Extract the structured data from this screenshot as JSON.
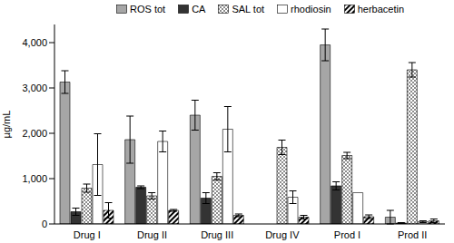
{
  "chart_data": {
    "type": "bar",
    "y_label": "µg/mL",
    "categories": [
      "Drug I",
      "Drug II",
      "Drug III",
      "Drug IV",
      "Prod I",
      "Prod II"
    ],
    "series": [
      {
        "name": "ROS tot",
        "color": "#a6a6a6",
        "values": [
          3130,
          1860,
          2400,
          0,
          3950,
          150
        ],
        "errors": [
          250,
          520,
          330,
          0,
          350,
          150
        ]
      },
      {
        "name": "CA",
        "color": "#333333",
        "values": [
          270,
          810,
          570,
          0,
          840,
          20
        ],
        "errors": [
          80,
          30,
          120,
          0,
          90,
          10
        ]
      },
      {
        "name": "SAL tot",
        "color": "#8c8c8c",
        "values": [
          790,
          620,
          1050,
          1690,
          1510,
          3400
        ],
        "errors": [
          90,
          70,
          80,
          160,
          70,
          160
        ]
      },
      {
        "name": "rhodiosin",
        "color": "#ffffff",
        "values": [
          1310,
          1820,
          2090,
          590,
          690,
          50
        ],
        "errors": [
          680,
          230,
          500,
          140,
          0,
          20
        ]
      },
      {
        "name": "herbacetin",
        "color": "#000000",
        "values": [
          300,
          300,
          190,
          150,
          160,
          70
        ],
        "errors": [
          170,
          20,
          30,
          40,
          40,
          40
        ]
      }
    ],
    "ylim": [
      0,
      4400
    ],
    "yticks": [
      0,
      {
        "value": 1000,
        "label": "1,000"
      },
      {
        "value": 2000,
        "label": "2,000"
      },
      {
        "value": 3000,
        "label": "3,000"
      },
      {
        "value": 4000,
        "label": "4,000"
      }
    ],
    "grid": false
  }
}
